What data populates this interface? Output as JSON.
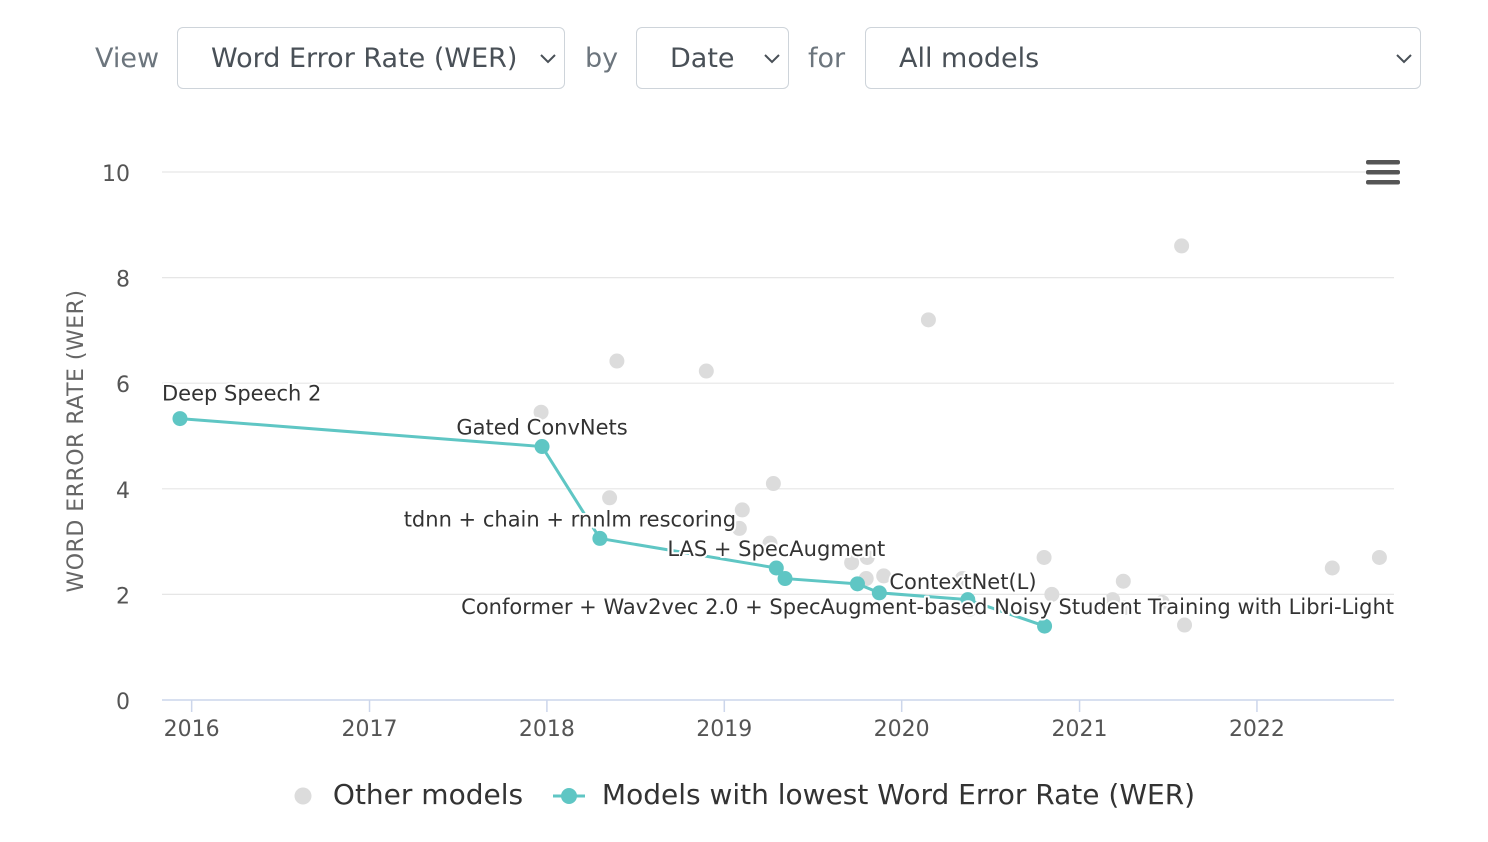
{
  "controls": {
    "view_label": "View",
    "metric_value": "Word Error Rate (WER)",
    "by_label": "by",
    "axis_value": "Date",
    "for_label": "for",
    "models_value": "All models"
  },
  "colors": {
    "best": "#5fc6c4",
    "other": "#dcdcdc",
    "grid": "#e6e6e6",
    "axis": "#ccd6eb",
    "menu": "#555555"
  },
  "icons": {
    "select_chevron": "chevron-down-icon",
    "chart_menu": "hamburger-menu-icon"
  },
  "chart_data": {
    "type": "scatter",
    "title": "",
    "xlabel": "",
    "ylabel": "WORD ERROR RATE (WER)",
    "x_type": "date",
    "xlim": [
      "2015-11-01",
      "2022-10-10"
    ],
    "ylim": [
      0,
      10
    ],
    "y_ticks": [
      0,
      2,
      4,
      6,
      8,
      10
    ],
    "x_ticks": [
      "2016",
      "2017",
      "2018",
      "2019",
      "2020",
      "2021",
      "2022"
    ],
    "grid": true,
    "legend_position": "bottom",
    "series": [
      {
        "name": "Other models",
        "color": "#dcdcdc",
        "points": [
          {
            "x": "2017-12-20",
            "y": 5.45
          },
          {
            "x": "2018-05-10",
            "y": 3.83
          },
          {
            "x": "2018-05-25",
            "y": 6.42
          },
          {
            "x": "2018-11-25",
            "y": 6.23
          },
          {
            "x": "2019-02-01",
            "y": 3.25
          },
          {
            "x": "2019-02-07",
            "y": 3.6
          },
          {
            "x": "2019-04-05",
            "y": 2.97
          },
          {
            "x": "2019-04-12",
            "y": 4.1
          },
          {
            "x": "2019-09-20",
            "y": 2.6
          },
          {
            "x": "2019-10-20",
            "y": 2.3
          },
          {
            "x": "2019-10-22",
            "y": 2.7
          },
          {
            "x": "2019-11-25",
            "y": 2.35
          },
          {
            "x": "2020-02-25",
            "y": 7.2
          },
          {
            "x": "2020-05-05",
            "y": 2.3
          },
          {
            "x": "2020-05-20",
            "y": 1.72
          },
          {
            "x": "2020-10-20",
            "y": 2.7
          },
          {
            "x": "2020-11-05",
            "y": 2.0
          },
          {
            "x": "2021-03-10",
            "y": 1.9
          },
          {
            "x": "2021-04-01",
            "y": 2.25
          },
          {
            "x": "2021-04-03",
            "y": 1.75
          },
          {
            "x": "2021-06-20",
            "y": 1.85
          },
          {
            "x": "2021-07-30",
            "y": 8.6
          },
          {
            "x": "2021-08-05",
            "y": 1.42
          },
          {
            "x": "2022-06-05",
            "y": 2.5
          },
          {
            "x": "2022-09-10",
            "y": 2.7
          }
        ]
      },
      {
        "name": "Models with lowest Word Error Rate (WER)",
        "color": "#5fc6c4",
        "points": [
          {
            "x": "2015-12-08",
            "y": 5.33,
            "label": "Deep Speech 2"
          },
          {
            "x": "2017-12-22",
            "y": 4.8,
            "label": "Gated ConvNets"
          },
          {
            "x": "2018-04-20",
            "y": 3.06,
            "label": "tdnn + chain + rnnlm rescoring"
          },
          {
            "x": "2019-04-18",
            "y": 2.5,
            "label": "LAS + SpecAugment"
          },
          {
            "x": "2019-05-06",
            "y": 2.3
          },
          {
            "x": "2019-10-02",
            "y": 2.2
          },
          {
            "x": "2019-11-16",
            "y": 2.03,
            "label": "ContextNet(L)"
          },
          {
            "x": "2020-05-16",
            "y": 1.9
          },
          {
            "x": "2020-10-21",
            "y": 1.4,
            "label": "Conformer + Wav2vec 2.0 + SpecAugment-based Noisy Student Training with Libri-Light"
          }
        ]
      }
    ]
  }
}
